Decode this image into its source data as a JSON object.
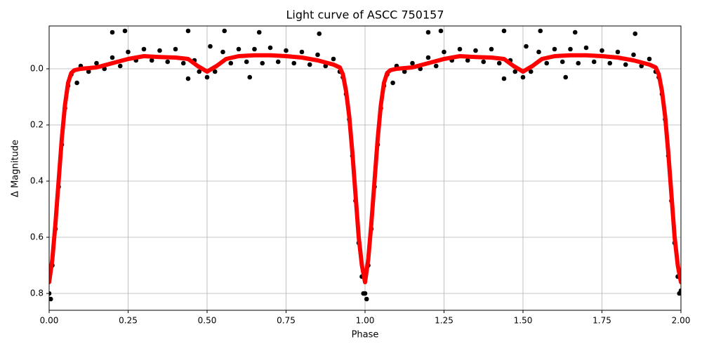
{
  "chart_data": {
    "type": "scatter",
    "title": "Light curve of ASCC 750157",
    "xlabel": "Phase",
    "ylabel": "Δ Magnitude",
    "xlim": [
      0,
      2
    ],
    "ylim": [
      0.86,
      -0.1525
    ],
    "xticks": [
      {
        "value": 0,
        "label": "0.00"
      },
      0.25,
      {
        "value": 0.5,
        "label": "0.50"
      },
      0.75,
      {
        "value": 1,
        "label": "1.00"
      },
      1.25,
      {
        "value": 1.5,
        "label": "1.50"
      },
      1.75,
      {
        "value": 2,
        "label": "2.00"
      }
    ],
    "yticks": [
      {
        "value": 0,
        "label": "0.0"
      },
      0.2,
      0.4,
      0.6,
      0.8
    ],
    "grid": true,
    "series": [
      {
        "type": "scatter",
        "color": "#000000",
        "x": [
          0,
          0.005,
          0.01,
          0.02,
          0.03,
          0.04,
          0.05,
          0.06,
          0.07,
          0.088,
          0.1,
          0.125,
          0.15,
          0.175,
          0.2,
          0.2,
          0.225,
          0.24,
          0.25,
          0.275,
          0.3,
          0.325,
          0.35,
          0.375,
          0.4,
          0.425,
          0.44,
          0.44,
          0.46,
          0.475,
          0.5,
          0.51,
          0.525,
          0.55,
          0.555,
          0.575,
          0.6,
          0.625,
          0.635,
          0.65,
          0.665,
          0.675,
          0.7,
          0.725,
          0.75,
          0.775,
          0.8,
          0.825,
          0.85,
          0.855,
          0.875,
          0.9,
          0.92,
          0.93,
          0.94,
          0.95,
          0.96,
          0.97,
          0.98,
          0.99,
          0.995,
          1,
          1.005,
          1.01,
          1.02,
          1.03,
          1.04,
          1.05,
          1.06,
          1.07,
          1.088,
          1.1,
          1.125,
          1.15,
          1.175,
          1.2,
          1.2,
          1.225,
          1.24,
          1.25,
          1.275,
          1.3,
          1.325,
          1.35,
          1.375,
          1.4,
          1.425,
          1.44,
          1.44,
          1.46,
          1.475,
          1.5,
          1.51,
          1.525,
          1.55,
          1.555,
          1.575,
          1.6,
          1.625,
          1.635,
          1.65,
          1.665,
          1.675,
          1.7,
          1.725,
          1.75,
          1.775,
          1.8,
          1.825,
          1.85,
          1.855,
          1.875,
          1.9,
          1.92,
          1.93,
          1.94,
          1.95,
          1.96,
          1.97,
          1.98,
          1.99,
          1.995,
          2
        ],
        "values": [
          0.8,
          0.82,
          0.7,
          0.57,
          0.42,
          0.27,
          0.14,
          0.06,
          0.02,
          0.05,
          -0.01,
          0.01,
          -0.02,
          0,
          -0.13,
          -0.04,
          -0.01,
          -0.135,
          -0.06,
          -0.03,
          -0.07,
          -0.03,
          -0.065,
          -0.025,
          -0.07,
          -0.02,
          -0.135,
          0.035,
          -0.03,
          0.01,
          0.03,
          -0.08,
          0.01,
          -0.06,
          -0.135,
          -0.02,
          -0.07,
          -0.025,
          0.03,
          -0.07,
          -0.13,
          -0.02,
          -0.075,
          -0.025,
          -0.065,
          -0.02,
          -0.06,
          -0.015,
          -0.05,
          -0.125,
          -0.01,
          -0.035,
          0.01,
          0.03,
          0.09,
          0.18,
          0.31,
          0.47,
          0.62,
          0.74,
          0.8,
          0.8,
          0.82,
          0.7,
          0.57,
          0.42,
          0.27,
          0.14,
          0.06,
          0.02,
          0.05,
          -0.01,
          0.01,
          -0.02,
          0,
          -0.13,
          -0.04,
          -0.01,
          -0.135,
          -0.06,
          -0.03,
          -0.07,
          -0.03,
          -0.065,
          -0.025,
          -0.07,
          -0.02,
          -0.135,
          0.035,
          -0.03,
          0.01,
          0.03,
          -0.08,
          0.01,
          -0.06,
          -0.135,
          -0.02,
          -0.07,
          -0.025,
          0.03,
          -0.07,
          -0.13,
          -0.02,
          -0.075,
          -0.025,
          -0.065,
          -0.02,
          -0.06,
          -0.015,
          -0.05,
          -0.125,
          -0.01,
          -0.035,
          0.01,
          0.03,
          0.09,
          0.18,
          0.31,
          0.47,
          0.62,
          0.74,
          0.8,
          0.79
        ]
      },
      {
        "type": "line",
        "color": "#ff0000",
        "x": [
          0,
          0.01,
          0.02,
          0.03,
          0.04,
          0.05,
          0.06,
          0.07,
          0.08,
          0.1,
          0.15,
          0.2,
          0.25,
          0.3,
          0.35,
          0.4,
          0.44,
          0.47,
          0.5,
          0.53,
          0.56,
          0.6,
          0.65,
          0.7,
          0.75,
          0.8,
          0.85,
          0.9,
          0.92,
          0.93,
          0.94,
          0.95,
          0.96,
          0.97,
          0.98,
          0.99,
          1,
          1.01,
          1.02,
          1.03,
          1.04,
          1.05,
          1.06,
          1.07,
          1.08,
          1.1,
          1.15,
          1.2,
          1.25,
          1.3,
          1.35,
          1.4,
          1.44,
          1.47,
          1.5,
          1.53,
          1.56,
          1.6,
          1.65,
          1.7,
          1.75,
          1.8,
          1.85,
          1.9,
          1.92,
          1.93,
          1.94,
          1.95,
          1.96,
          1.97,
          1.98,
          1.99,
          2
        ],
        "values": [
          0.76,
          0.68,
          0.55,
          0.4,
          0.25,
          0.13,
          0.05,
          0.015,
          0.005,
          0,
          -0.005,
          -0.02,
          -0.035,
          -0.045,
          -0.042,
          -0.04,
          -0.035,
          -0.01,
          0.01,
          -0.01,
          -0.035,
          -0.045,
          -0.048,
          -0.048,
          -0.045,
          -0.04,
          -0.03,
          -0.015,
          -0.005,
          0.02,
          0.08,
          0.17,
          0.3,
          0.45,
          0.6,
          0.7,
          0.76,
          0.68,
          0.55,
          0.4,
          0.25,
          0.13,
          0.05,
          0.015,
          0.005,
          0,
          -0.005,
          -0.02,
          -0.035,
          -0.045,
          -0.042,
          -0.04,
          -0.035,
          -0.01,
          0.01,
          -0.01,
          -0.035,
          -0.045,
          -0.048,
          -0.048,
          -0.045,
          -0.04,
          -0.03,
          -0.015,
          -0.005,
          0.02,
          0.08,
          0.17,
          0.3,
          0.45,
          0.6,
          0.7,
          0.76
        ]
      }
    ]
  }
}
